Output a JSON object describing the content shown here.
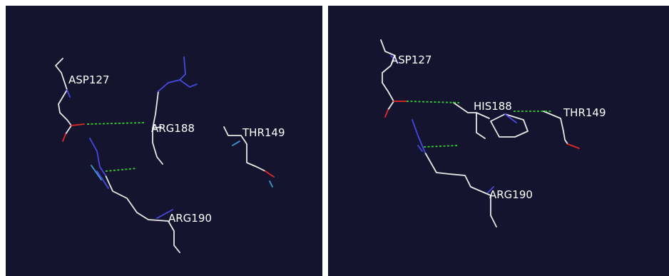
{
  "panels": [
    {
      "residues": [
        "ASP127",
        "ARG188",
        "THR149",
        "ARG190"
      ]
    },
    {
      "residues": [
        "ASP127",
        "HIS188",
        "THR149",
        "ARG190"
      ]
    }
  ],
  "colors": {
    "background": "#14142e",
    "carbon_bond": "#e8e8e8",
    "nitrogen": "#4848e0",
    "oxygen": "#e02828",
    "hydrogen_bond": "#2fcf2f",
    "label": "#ffffff"
  }
}
